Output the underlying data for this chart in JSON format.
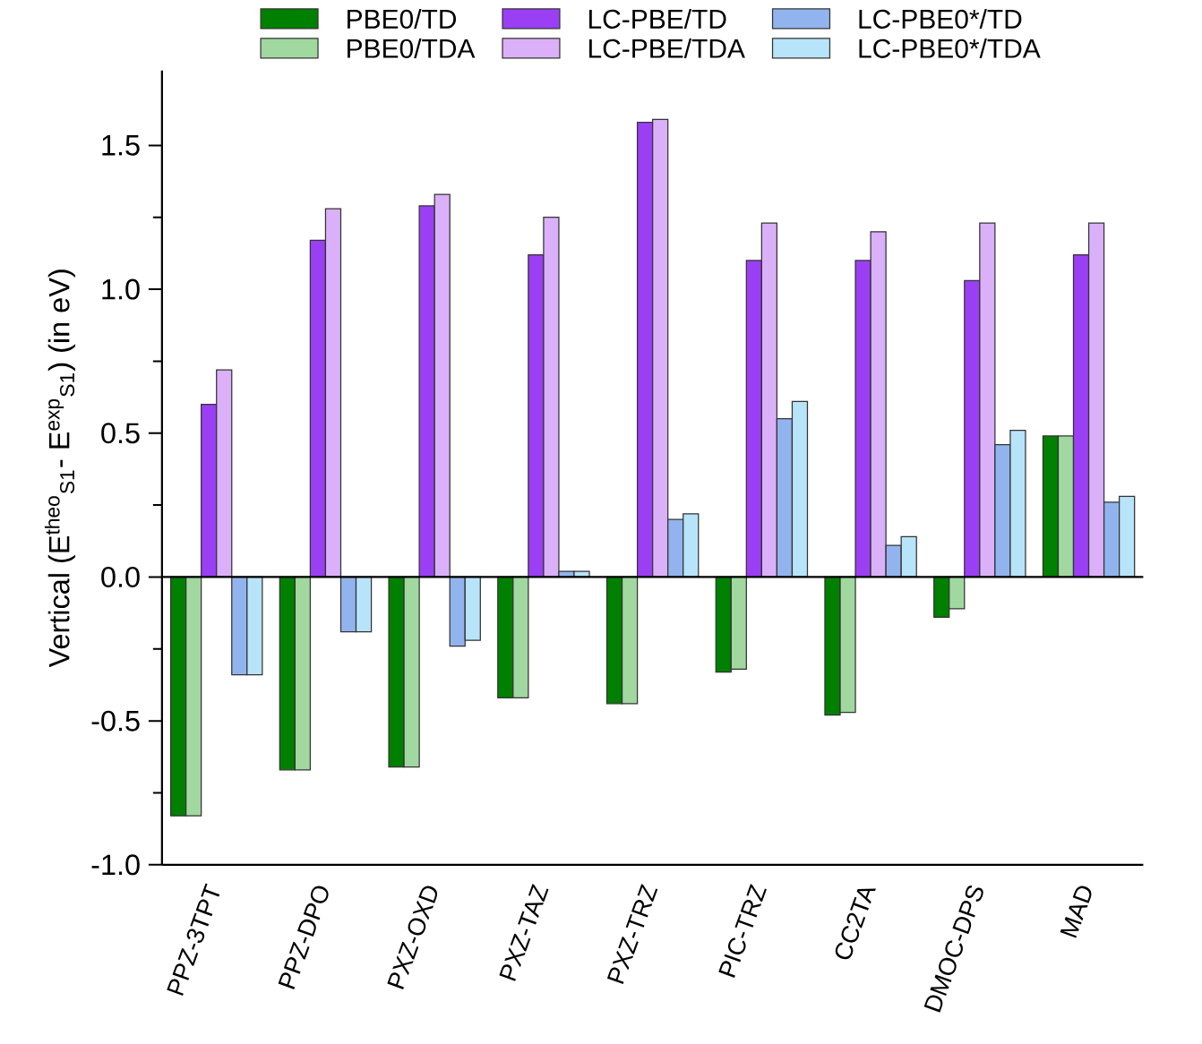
{
  "chart_data": {
    "type": "bar",
    "ylabel": "Vertical (E$^{theo}$$_{S1}$- E$^{exp}$$_{S1}$) (in eV)",
    "categories": [
      "PPZ-3TPT",
      "PPZ-DPO",
      "PXZ-OXD",
      "PXZ-TAZ",
      "PXZ-TRZ",
      "PIC-TRZ",
      "CC2TA",
      "DMOC-DPS",
      "MAD"
    ],
    "series": [
      {
        "name": "PBE0/TD",
        "color": "#008000",
        "values": [
          -0.83,
          -0.67,
          -0.66,
          -0.42,
          -0.44,
          -0.33,
          -0.48,
          -0.14,
          0.49
        ]
      },
      {
        "name": "PBE0/TDA",
        "color": "#a0d8a0",
        "values": [
          -0.83,
          -0.67,
          -0.66,
          -0.42,
          -0.44,
          -0.32,
          -0.47,
          -0.11,
          0.49
        ]
      },
      {
        "name": "LC-PBE/TD",
        "color": "#9b3ff5",
        "values": [
          0.6,
          1.17,
          1.29,
          1.12,
          1.58,
          1.1,
          1.1,
          1.03,
          1.12
        ]
      },
      {
        "name": "LC-PBE/TDA",
        "color": "#dab0f8",
        "values": [
          0.72,
          1.28,
          1.33,
          1.25,
          1.59,
          1.23,
          1.2,
          1.23,
          1.23
        ]
      },
      {
        "name": "LC-PBE0*/TD",
        "color": "#92b4ee",
        "values": [
          -0.34,
          -0.19,
          -0.24,
          0.02,
          0.2,
          0.55,
          0.11,
          0.46,
          0.26
        ]
      },
      {
        "name": "LC-PBE0*/TDA",
        "color": "#b8e4fa",
        "values": [
          -0.34,
          -0.19,
          -0.22,
          0.02,
          0.22,
          0.61,
          0.14,
          0.51,
          0.28
        ]
      }
    ],
    "ylim": [
      -1.0,
      1.76
    ],
    "yticks": [
      {
        "value": -1,
        "label": "-1.0"
      },
      {
        "value": -0.5,
        "label": "-0.5"
      },
      {
        "value": 0,
        "label": "0.0"
      },
      {
        "value": 0.5,
        "label": "0.5"
      },
      {
        "value": 1,
        "label": "1.0"
      },
      {
        "value": 1.5,
        "label": "1.5"
      }
    ],
    "ref_lines": [
      {
        "axis": "y",
        "value": 0
      }
    ],
    "legend": "top",
    "grid": false
  }
}
